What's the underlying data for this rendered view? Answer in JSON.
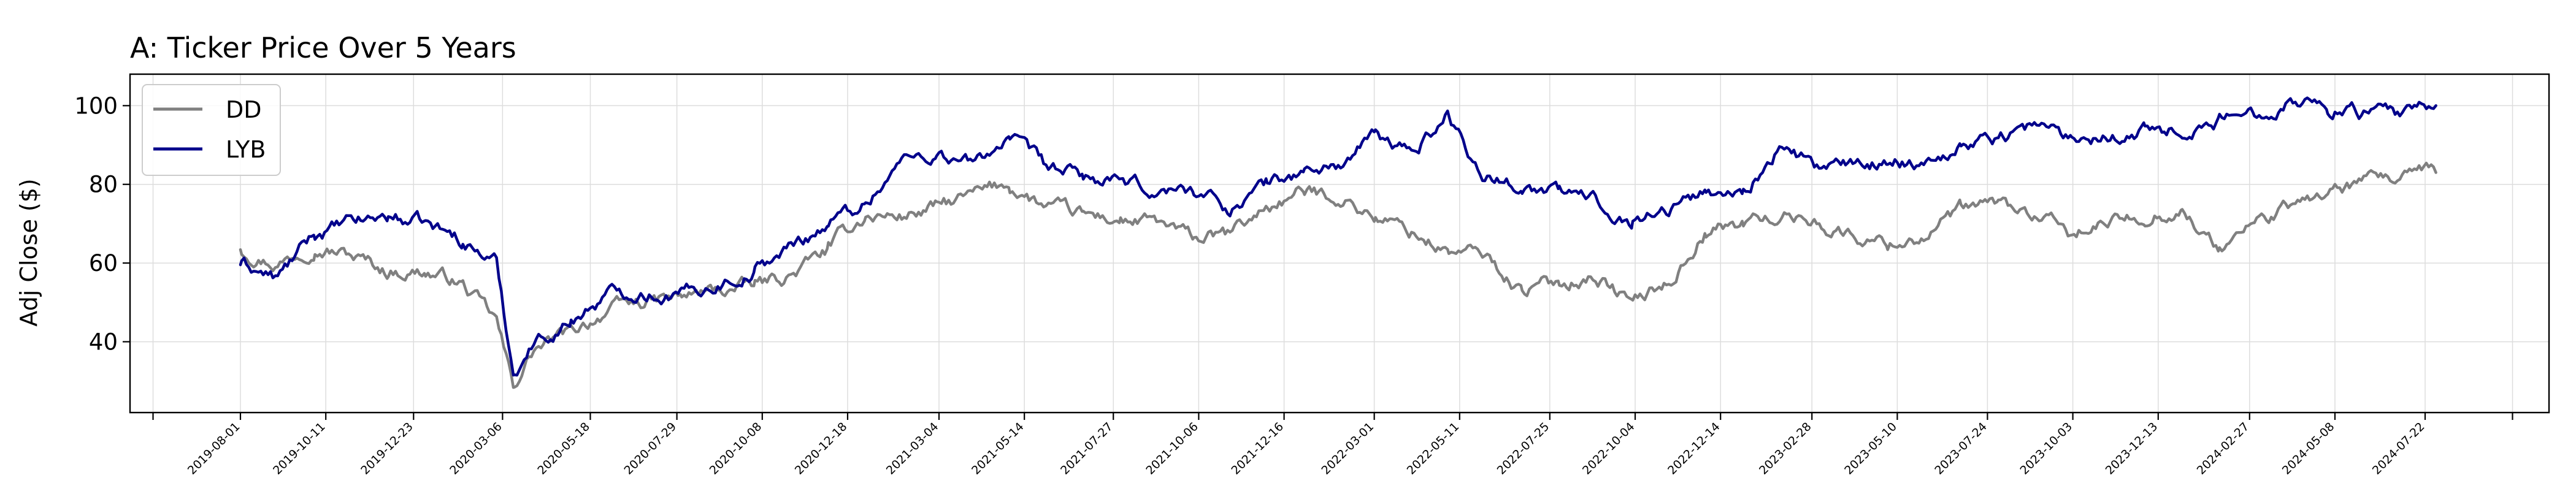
{
  "chart_data": {
    "type": "line",
    "title": "A: Ticker Price Over 5 Years",
    "xlabel": "",
    "ylabel": "Adj Close ($)",
    "ylim": [
      22,
      108
    ],
    "yticks": [
      40,
      60,
      80,
      100
    ],
    "grid": true,
    "legend_position": "top-left",
    "xtick_labels": [
      "2019-08-01",
      "2019-10-11",
      "2019-12-23",
      "2020-03-06",
      "2020-05-18",
      "2020-07-29",
      "2020-10-08",
      "2020-12-18",
      "2021-03-04",
      "2021-05-14",
      "2021-07-27",
      "2021-10-06",
      "2021-12-16",
      "2022-03-01",
      "2022-05-11",
      "2022-07-25",
      "2022-10-04",
      "2022-12-14",
      "2023-02-28",
      "2023-05-10",
      "2023-07-24",
      "2023-10-03",
      "2023-12-13",
      "2024-02-27",
      "2024-05-08",
      "2024-07-22"
    ],
    "x": [
      "2019-08-01",
      "2019-09-01",
      "2019-10-01",
      "2019-11-01",
      "2019-12-01",
      "2020-01-01",
      "2020-02-01",
      "2020-03-01",
      "2020-03-15",
      "2020-04-01",
      "2020-05-01",
      "2020-06-01",
      "2020-07-01",
      "2020-08-01",
      "2020-09-01",
      "2020-10-01",
      "2020-11-01",
      "2020-12-01",
      "2021-01-01",
      "2021-02-01",
      "2021-03-01",
      "2021-04-01",
      "2021-05-01",
      "2021-06-01",
      "2021-07-01",
      "2021-08-01",
      "2021-09-01",
      "2021-10-01",
      "2021-11-01",
      "2021-12-01",
      "2022-01-01",
      "2022-02-01",
      "2022-03-01",
      "2022-04-01",
      "2022-05-01",
      "2022-06-01",
      "2022-07-01",
      "2022-08-01",
      "2022-09-01",
      "2022-10-01",
      "2022-11-01",
      "2022-12-01",
      "2023-01-01",
      "2023-02-01",
      "2023-03-01",
      "2023-04-01",
      "2023-05-01",
      "2023-06-01",
      "2023-07-01",
      "2023-08-01",
      "2023-09-01",
      "2023-10-01",
      "2023-11-01",
      "2023-12-01",
      "2024-01-01",
      "2024-02-01",
      "2024-03-01",
      "2024-04-01",
      "2024-05-01",
      "2024-06-01",
      "2024-07-01",
      "2024-07-31"
    ],
    "series": [
      {
        "name": "DD",
        "color": "#808080",
        "values": [
          64,
          60,
          65,
          62,
          58,
          58,
          55,
          45,
          28,
          38,
          42,
          48,
          50,
          51,
          53,
          54,
          57,
          63,
          72,
          72,
          74,
          77,
          80,
          74,
          72,
          71,
          70,
          66,
          67,
          74,
          78,
          77,
          72,
          68,
          63,
          62,
          53,
          55,
          57,
          50,
          55,
          68,
          70,
          72,
          71,
          67,
          65,
          67,
          73,
          75,
          72,
          67,
          70,
          72,
          74,
          63,
          70,
          74,
          78,
          80,
          81,
          83
        ]
      },
      {
        "name": "LYB",
        "color": "#00008b",
        "values": [
          60,
          56,
          67,
          70,
          72,
          70,
          66,
          60,
          32,
          40,
          45,
          52,
          53,
          52,
          55,
          58,
          64,
          70,
          75,
          86,
          88,
          85,
          92,
          84,
          82,
          80,
          78,
          79,
          74,
          80,
          83,
          85,
          92,
          88,
          98,
          82,
          80,
          78,
          76,
          71,
          74,
          78,
          78,
          89,
          85,
          84,
          86,
          86,
          90,
          92,
          95,
          92,
          93,
          94,
          94,
          96,
          98,
          102,
          100,
          98,
          97,
          100
        ]
      }
    ]
  }
}
